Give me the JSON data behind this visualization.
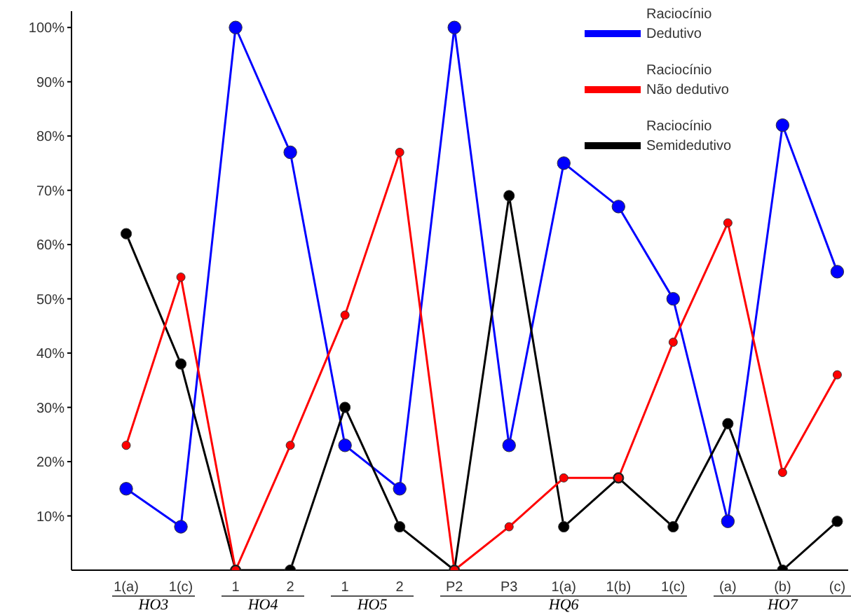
{
  "chart_data": {
    "type": "line",
    "categories": [
      "1(a)",
      "1(c)",
      "1",
      "2",
      "1",
      "2",
      "P2",
      "P3",
      "1(a)",
      "1(b)",
      "1(c)",
      "(a)",
      "(b)",
      "(c)"
    ],
    "series": [
      {
        "name": "Raciocínio Dedutivo",
        "color": "#0000ff",
        "values": [
          15,
          8,
          100,
          77,
          23,
          15,
          100,
          23,
          75,
          67,
          50,
          9,
          82,
          55
        ]
      },
      {
        "name": "Raciocínio Semidedutivo",
        "color": "#000000",
        "values": [
          62,
          38,
          0,
          0,
          30,
          8,
          0,
          69,
          8,
          17,
          8,
          27,
          0,
          9
        ]
      },
      {
        "name": "Raciocínio Não dedutivo",
        "color": "#ff0000",
        "values": [
          23,
          54,
          0,
          23,
          47,
          77,
          0,
          8,
          17,
          17,
          42,
          64,
          18,
          36
        ]
      }
    ],
    "ylim": [
      0,
      103
    ],
    "yticks": [
      {
        "value": 10,
        "label": "10%"
      },
      {
        "value": 20,
        "label": "20%"
      },
      {
        "value": 30,
        "label": "30%"
      },
      {
        "value": 40,
        "label": "40%"
      },
      {
        "value": 50,
        "label": "50%"
      },
      {
        "value": 60,
        "label": "60%"
      },
      {
        "value": 70,
        "label": "70%"
      },
      {
        "value": 80,
        "label": "80%"
      },
      {
        "value": 90,
        "label": "90%"
      },
      {
        "value": 100,
        "label": "100%"
      }
    ],
    "annotations": [
      "HO3",
      "HO4",
      "HO5",
      "HQ6",
      "HO7"
    ],
    "grid": false,
    "legend": "top right",
    "marker": "circle",
    "line_style": "solid"
  }
}
